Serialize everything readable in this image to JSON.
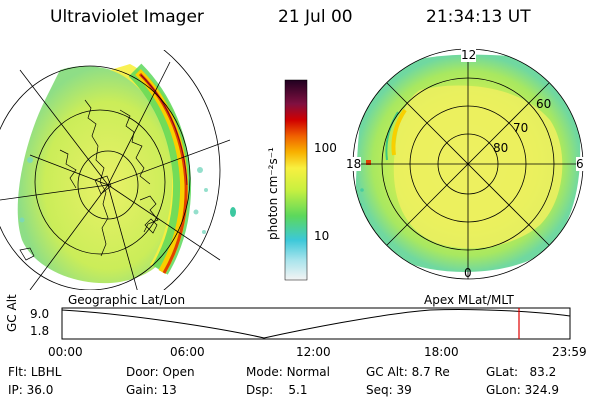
{
  "header": {
    "instrument": "Ultraviolet Imager",
    "date": "21 Jul 00",
    "time": "21:34:13 UT"
  },
  "colorbar": {
    "unit_label": "photon cm⁻²s⁻¹",
    "ticks": [
      "100",
      "10"
    ],
    "scale": "log"
  },
  "left_panel": {
    "label": "Geographic Lat/Lon"
  },
  "right_panel": {
    "label": "Apex MLat/MLT",
    "mlt_labels": [
      "12",
      "18",
      "6",
      "0"
    ],
    "lat_labels": [
      "60",
      "70",
      "80"
    ]
  },
  "timeline": {
    "ylabel": "GC Alt",
    "yticks": [
      "9.0",
      "1.8"
    ],
    "xticks": [
      "00:00",
      "06:00",
      "12:00",
      "18:00",
      "23:59"
    ],
    "marker_color": "#e00000"
  },
  "info": {
    "flt_label": "Flt:",
    "flt_value": "LBHL",
    "ip_label": "IP:",
    "ip_value": "36.0",
    "door_label": "Door:",
    "door_value": "Open",
    "gain_label": "Gain:",
    "gain_value": "13",
    "mode_label": "Mode:",
    "mode_value": "Normal",
    "dsp_label": "Dsp:",
    "dsp_value": "5.1",
    "gcalt_label": "GC Alt:",
    "gcalt_value": "8.7 Re",
    "seq_label": "Seq:",
    "seq_value": "39",
    "glat_label": "GLat:",
    "glat_value": "83.2",
    "glon_label": "GLon:",
    "glon_value": "324.9"
  }
}
